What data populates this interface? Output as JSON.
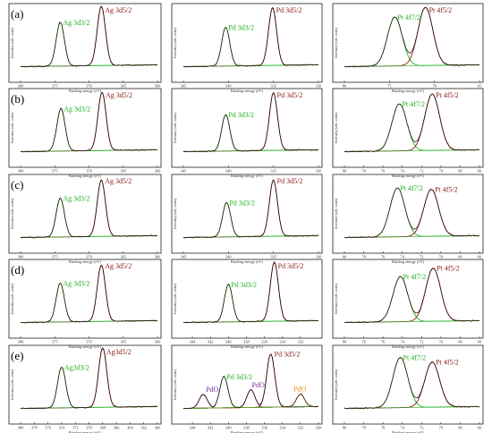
{
  "colors": {
    "background": "#ffffff",
    "axis": "#000000",
    "fit_green": "#22b022",
    "fit_maroon": "#8b1a1a",
    "data_black": "#000000",
    "envelope_red": "#d04040",
    "oxide_purple": "#7a2fa0",
    "oxide_orange": "#e08a1a"
  },
  "row_labels": [
    "(a)",
    "(b)",
    "(c)",
    "(d)",
    "(e)"
  ],
  "xlabel": "Binding energy (eV)",
  "ylabel": "Intensity (arb. units)",
  "chart_data": [
    {
      "type": "line",
      "row": "(a)",
      "element": "Ag",
      "x_range": [
        380,
        360
      ],
      "x_ticks": [
        "380",
        "375",
        "370",
        "365",
        "360"
      ],
      "peaks": [
        {
          "label": "Ag 3d3/2",
          "center": 374.2,
          "height": 0.7,
          "color": "green"
        },
        {
          "label": "Ag 3d5/2",
          "center": 368.2,
          "height": 0.95,
          "color": "maroon"
        }
      ]
    },
    {
      "type": "line",
      "row": "(a)",
      "element": "Pd",
      "x_range": [
        345,
        330
      ],
      "x_ticks": [
        "345",
        "340",
        "335",
        "330"
      ],
      "peaks": [
        {
          "label": "Pd 3d3/2",
          "center": 340.3,
          "height": 0.62,
          "color": "green"
        },
        {
          "label": "Pd 3d5/2",
          "center": 335.1,
          "height": 0.92,
          "color": "maroon"
        }
      ]
    },
    {
      "type": "line",
      "row": "(a)",
      "element": "Pt",
      "x_range": [
        80,
        65
      ],
      "x_ticks": [
        "80",
        "75",
        "70",
        "65"
      ],
      "peaks": [
        {
          "label": "Pt 4f7/2",
          "center": 74.4,
          "height": 0.78,
          "color": "green"
        },
        {
          "label": "Pt 4f5/2",
          "center": 71.0,
          "height": 0.93,
          "color": "maroon"
        }
      ]
    },
    {
      "type": "line",
      "row": "(b)",
      "element": "Ag",
      "x_range": [
        380,
        360
      ],
      "x_ticks": [
        "380",
        "375",
        "370",
        "365",
        "360"
      ],
      "peaks": [
        {
          "label": "Ag 3d3/2",
          "center": 374.1,
          "height": 0.68,
          "color": "green"
        },
        {
          "label": "Ag 3d5/2",
          "center": 368.1,
          "height": 0.93,
          "color": "maroon"
        }
      ]
    },
    {
      "type": "line",
      "row": "(b)",
      "element": "Pd",
      "x_range": [
        345,
        330
      ],
      "x_ticks": [
        "345",
        "340",
        "335",
        "330"
      ],
      "peaks": [
        {
          "label": "Pd 3d3/2",
          "center": 340.3,
          "height": 0.58,
          "color": "green"
        },
        {
          "label": "Pd 3d5/2",
          "center": 335.0,
          "height": 0.92,
          "color": "maroon"
        }
      ]
    },
    {
      "type": "line",
      "row": "(b)",
      "element": "Pt",
      "x_range": [
        80,
        66
      ],
      "x_ticks": [
        "80",
        "78",
        "76",
        "74",
        "72",
        "70",
        "68",
        "66"
      ],
      "peaks": [
        {
          "label": "Pt 4f7/2",
          "center": 74.3,
          "height": 0.75,
          "color": "green"
        },
        {
          "label": "Pt 4f5/2",
          "center": 70.9,
          "height": 0.9,
          "color": "maroon"
        }
      ]
    },
    {
      "type": "line",
      "row": "(c)",
      "element": "Ag",
      "x_range": [
        380,
        360
      ],
      "x_ticks": [
        "380",
        "375",
        "370",
        "365",
        "360"
      ],
      "peaks": [
        {
          "label": "Ag 3d3/2",
          "center": 374.2,
          "height": 0.62,
          "color": "green"
        },
        {
          "label": "Ag 3d5/2",
          "center": 368.2,
          "height": 0.9,
          "color": "maroon"
        }
      ]
    },
    {
      "type": "line",
      "row": "(c)",
      "element": "Pd",
      "x_range": [
        345,
        330
      ],
      "x_ticks": [
        "345",
        "340",
        "335",
        "330"
      ],
      "peaks": [
        {
          "label": "Pd 3d3/2",
          "center": 340.2,
          "height": 0.55,
          "color": "green"
        },
        {
          "label": "Pd 3d5/2",
          "center": 335.0,
          "height": 0.9,
          "color": "maroon"
        }
      ]
    },
    {
      "type": "line",
      "row": "(c)",
      "element": "Pt",
      "x_range": [
        80,
        66
      ],
      "x_ticks": [
        "80",
        "78",
        "76",
        "74",
        "72",
        "70",
        "68",
        "66"
      ],
      "peaks": [
        {
          "label": "Pt 4f7/2",
          "center": 74.5,
          "height": 0.78,
          "color": "green"
        },
        {
          "label": "Pt 4f5/2",
          "center": 71.0,
          "height": 0.75,
          "color": "maroon"
        }
      ]
    },
    {
      "type": "line",
      "row": "(d)",
      "element": "Ag",
      "x_range": [
        380,
        360
      ],
      "x_ticks": [
        "380",
        "375",
        "370",
        "365",
        "360"
      ],
      "peaks": [
        {
          "label": "Ag 3d3/2",
          "center": 374.2,
          "height": 0.62,
          "color": "green"
        },
        {
          "label": "Ag 3d5/2",
          "center": 368.2,
          "height": 0.9,
          "color": "maroon"
        }
      ]
    },
    {
      "type": "line",
      "row": "(d)",
      "element": "Pd",
      "x_range": [
        345,
        330
      ],
      "x_ticks": [
        "344",
        "342",
        "340",
        "338",
        "336",
        "334",
        "332"
      ],
      "peaks": [
        {
          "label": "Pd 3d3/2",
          "center": 340.0,
          "height": 0.6,
          "color": "green"
        },
        {
          "label": "Pd 3d5/2",
          "center": 334.9,
          "height": 0.95,
          "color": "maroon"
        }
      ]
    },
    {
      "type": "line",
      "row": "(d)",
      "element": "Pt",
      "x_range": [
        80,
        66
      ],
      "x_ticks": [
        "80",
        "78",
        "76",
        "74",
        "72",
        "70",
        "68",
        "66"
      ],
      "peaks": [
        {
          "label": "Pt 4f7/2",
          "center": 74.2,
          "height": 0.72,
          "color": "green"
        },
        {
          "label": "Pt 4f5/2",
          "center": 70.8,
          "height": 0.85,
          "color": "maroon"
        }
      ]
    },
    {
      "type": "line",
      "row": "(e)",
      "element": "Ag",
      "x_range": [
        380,
        360
      ],
      "x_ticks": [
        "380",
        "378",
        "376",
        "374",
        "372",
        "370",
        "368",
        "366",
        "364",
        "362",
        "360"
      ],
      "peaks": [
        {
          "label": "Ag3d3/2",
          "center": 374.0,
          "height": 0.65,
          "color": "green"
        },
        {
          "label": "Ag3d5/2",
          "center": 368.0,
          "height": 0.95,
          "color": "maroon"
        }
      ]
    },
    {
      "type": "line",
      "row": "(e)",
      "element": "Pd",
      "x_range": [
        345,
        330
      ],
      "x_ticks": [
        "344",
        "342",
        "340",
        "338",
        "336",
        "334",
        "332",
        "330"
      ],
      "peaks": [
        {
          "label": "PdO",
          "center": 342.8,
          "height": 0.22,
          "color": "purple"
        },
        {
          "label": "Pd 3d3/2",
          "center": 340.5,
          "height": 0.5,
          "color": "green"
        },
        {
          "label": "PdO",
          "center": 337.5,
          "height": 0.28,
          "color": "purple"
        },
        {
          "label": "Pd 3d5/2",
          "center": 335.3,
          "height": 0.85,
          "color": "maroon"
        },
        {
          "label": "PdO",
          "center": 332.0,
          "height": 0.2,
          "color": "orange"
        }
      ]
    },
    {
      "type": "line",
      "row": "(e)",
      "element": "Pt",
      "x_range": [
        80,
        66
      ],
      "x_ticks": [
        "80",
        "78",
        "76",
        "74",
        "72",
        "70",
        "68",
        "66"
      ],
      "peaks": [
        {
          "label": "Pt 4f7/2",
          "center": 74.2,
          "height": 0.8,
          "color": "green"
        },
        {
          "label": "Pt 4f5/2",
          "center": 70.9,
          "height": 0.72,
          "color": "maroon"
        }
      ]
    }
  ]
}
